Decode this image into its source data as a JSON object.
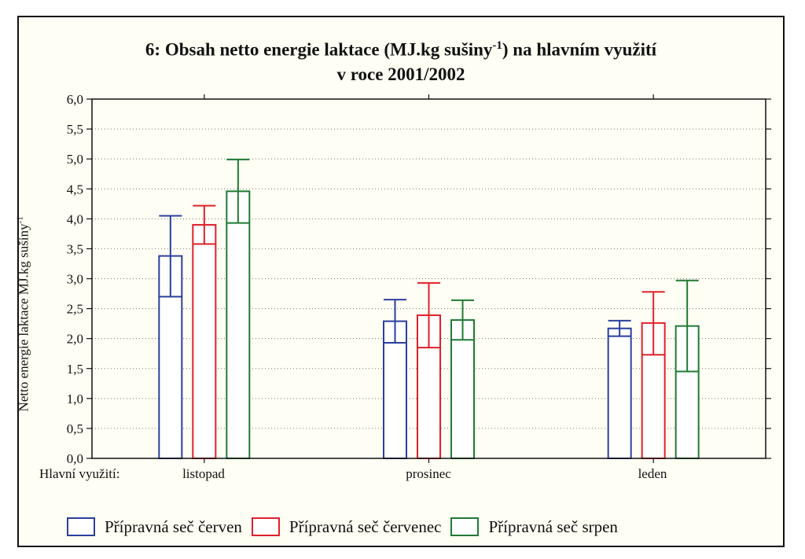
{
  "chart_data": {
    "type": "bar",
    "title_line1_before": "6: Obsah netto energie laktace (MJ.kg sušiny",
    "title_line1_sup": "-1",
    "title_line1_after": ") na hlavním využití",
    "title_line2": "v roce 2001/2002",
    "ylabel_main": "Netto energie laktace MJ.kg sušiny",
    "ylabel_sup": "-1",
    "xlabel_prefix": "Hlavní využití:",
    "categories": [
      "listopad",
      "prosinec",
      "leden"
    ],
    "ylim": [
      0,
      6
    ],
    "yticks": [
      "0,0",
      "0,5",
      "1,0",
      "1,5",
      "2,0",
      "2,5",
      "3,0",
      "3,5",
      "4,0",
      "4,5",
      "5,0",
      "5,5",
      "6,0"
    ],
    "grid": true,
    "legend_position": "bottom",
    "series": [
      {
        "name": "Přípravná seč červen",
        "color": "#2b3f9e",
        "values": [
          3.38,
          2.29,
          2.17
        ],
        "lower": [
          2.7,
          1.93,
          2.04
        ],
        "upper": [
          4.05,
          2.65,
          2.3
        ]
      },
      {
        "name": "Přípravná seč červenec",
        "color": "#e0202a",
        "values": [
          3.9,
          2.39,
          2.26
        ],
        "lower": [
          3.58,
          1.85,
          1.73
        ],
        "upper": [
          4.22,
          2.93,
          2.78
        ]
      },
      {
        "name": "Přípravná seč srpen",
        "color": "#1f7a35",
        "values": [
          4.46,
          2.31,
          2.21
        ],
        "lower": [
          3.93,
          1.98,
          1.45
        ],
        "upper": [
          4.99,
          2.64,
          2.97
        ]
      }
    ]
  }
}
